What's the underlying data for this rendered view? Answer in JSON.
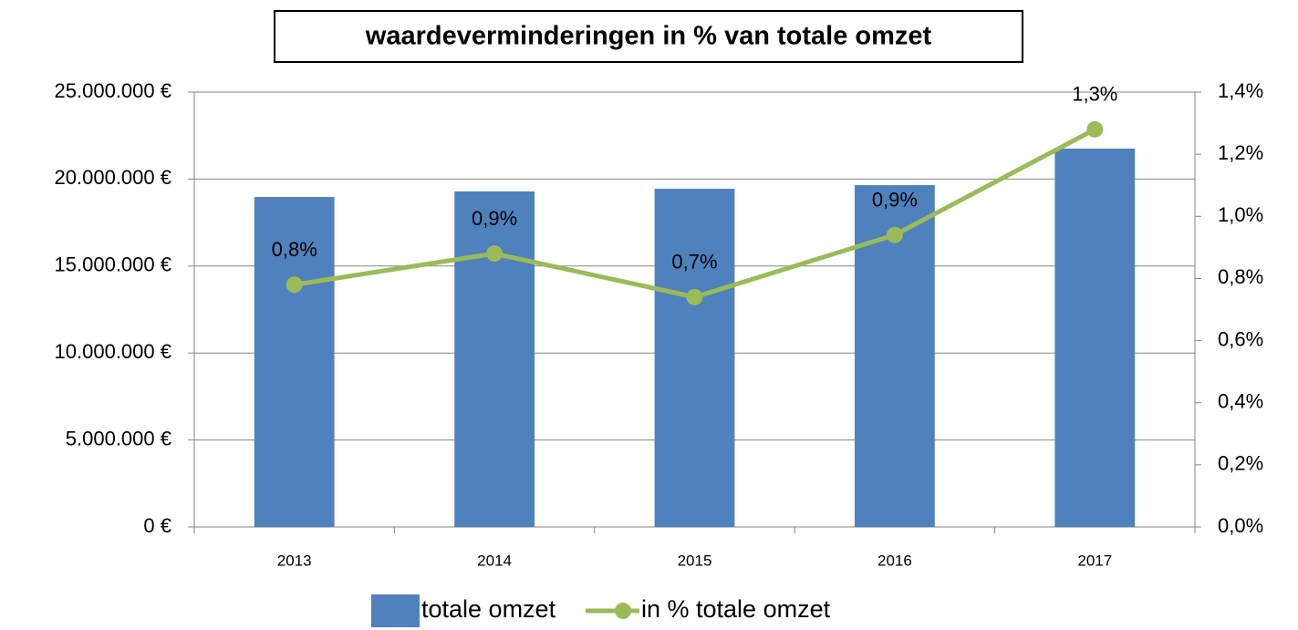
{
  "chart_data": {
    "type": "combo",
    "title": "waardeverminderingen in % van totale omzet",
    "categories": [
      "2013",
      "2014",
      "2015",
      "2016",
      "2017"
    ],
    "series": [
      {
        "name": "totale omzet",
        "type": "bar",
        "color": "#4f81bd",
        "values": [
          18970000,
          19290000,
          19440000,
          19650000,
          21750000
        ]
      },
      {
        "name": "in % totale omzet",
        "type": "line",
        "axis": "y2",
        "color": "#9bbb59",
        "values": [
          0.78,
          0.88,
          0.74,
          0.94,
          1.28
        ],
        "value_labels": [
          "0,8%",
          "0,9%",
          "0,7%",
          "0,9%",
          "1,3%"
        ]
      }
    ],
    "ylim": [
      0,
      25000000
    ],
    "yticks": [
      {
        "value": 0,
        "label": "0 €"
      },
      {
        "value": 5000000,
        "label": "5.000.000 €"
      },
      {
        "value": 10000000,
        "label": "10.000.000 €"
      },
      {
        "value": 15000000,
        "label": "15.000.000 €"
      },
      {
        "value": 20000000,
        "label": "20.000.000 €"
      },
      {
        "value": 25000000,
        "label": "25.000.000 €"
      }
    ],
    "y2lim": [
      0,
      1.4
    ],
    "y2ticks": [
      {
        "value": 0,
        "label": "0,0%"
      },
      {
        "value": 0.2,
        "label": "0,2%"
      },
      {
        "value": 0.4,
        "label": "0,4%"
      },
      {
        "value": 0.6,
        "label": "0,6%"
      },
      {
        "value": 0.8,
        "label": "0,8%"
      },
      {
        "value": 1.0,
        "label": "1,0%"
      },
      {
        "value": 1.2,
        "label": "1,2%"
      },
      {
        "value": 1.4,
        "label": "1,4%"
      }
    ],
    "grid": true,
    "legend": "bottom"
  }
}
